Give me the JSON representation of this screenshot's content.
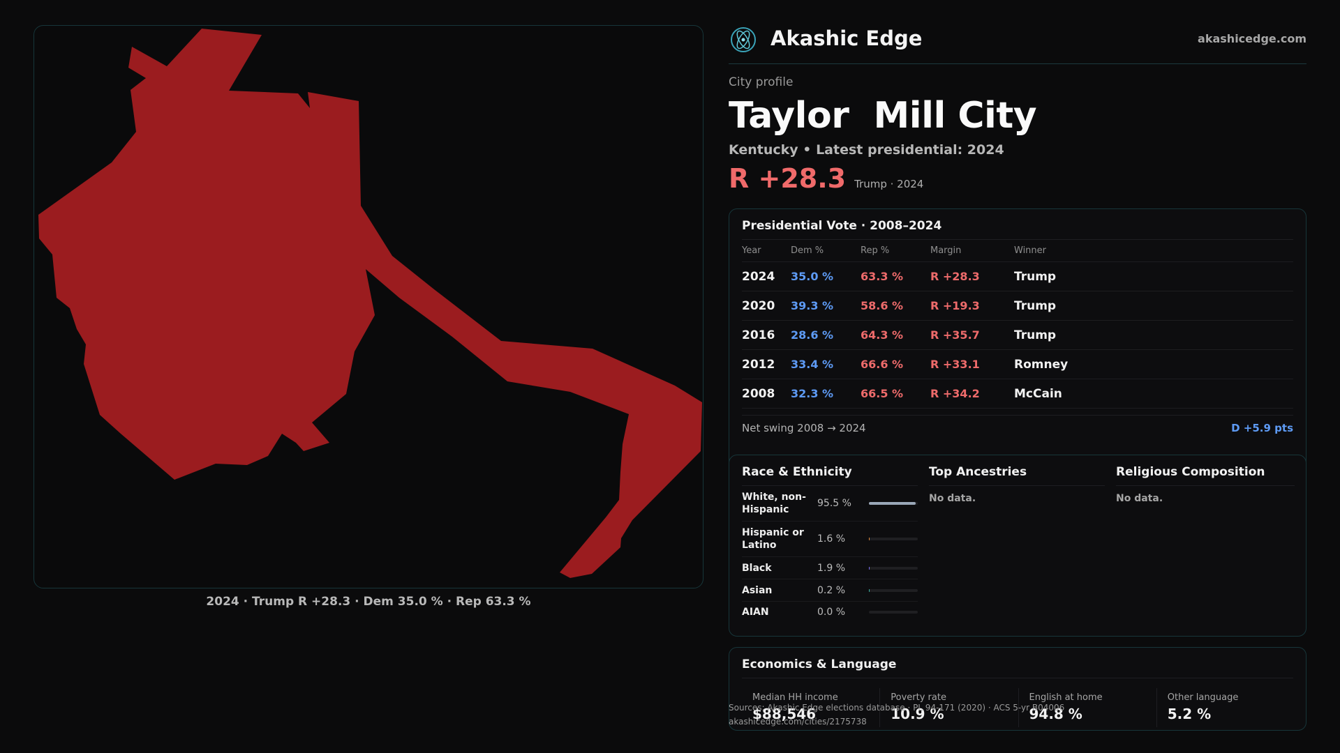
{
  "map": {
    "fill_color": "#9b1c1f",
    "caption": "2024 · Trump R +28.3 · Dem 35.0 % · Rep 63.3 %"
  },
  "header": {
    "brand": "Akashic Edge",
    "site": "akashicedge.com",
    "logo_icon": "atom-logo-icon"
  },
  "profile": {
    "label": "City profile",
    "city": "Taylor  Mill City",
    "subtitle": "Kentucky • Latest presidential: 2024",
    "margin": "R +28.3",
    "margin_note": "Trump · 2024"
  },
  "vote": {
    "title": "Presidential Vote · 2008–2024",
    "columns": [
      "Year",
      "Dem %",
      "Rep %",
      "Margin",
      "Winner"
    ],
    "rows": [
      {
        "year": "2024",
        "dem": "35.0 %",
        "rep": "63.3 %",
        "margin": "R +28.3",
        "winner": "Trump"
      },
      {
        "year": "2020",
        "dem": "39.3 %",
        "rep": "58.6 %",
        "margin": "R +19.3",
        "winner": "Trump"
      },
      {
        "year": "2016",
        "dem": "28.6 %",
        "rep": "64.3 %",
        "margin": "R +35.7",
        "winner": "Trump"
      },
      {
        "year": "2012",
        "dem": "33.4 %",
        "rep": "66.6 %",
        "margin": "R +33.1",
        "winner": "Romney"
      },
      {
        "year": "2008",
        "dem": "32.3 %",
        "rep": "66.5 %",
        "margin": "R +34.2",
        "winner": "McCain"
      }
    ],
    "swing_label": "Net swing 2008 → 2024",
    "swing_value": "D +5.9 pts"
  },
  "demographics": {
    "race_title": "Race & Ethnicity",
    "race": [
      {
        "label": "White, non-Hispanic",
        "pct": "95.5 %",
        "share": 0.955,
        "color": "#9aa7b8"
      },
      {
        "label": "Hispanic or Latino",
        "pct": "1.6 %",
        "share": 0.016,
        "color": "#e0893a"
      },
      {
        "label": "Black",
        "pct": "1.9 %",
        "share": 0.019,
        "color": "#7a6cf0"
      },
      {
        "label": "Asian",
        "pct": "0.2 %",
        "share": 0.002,
        "color": "#3ab0a0"
      },
      {
        "label": "AIAN",
        "pct": "0.0 %",
        "share": 0.0,
        "color": "#c0c0c0"
      }
    ],
    "ancestry_title": "Top Ancestries",
    "ancestry_empty": "No data.",
    "religion_title": "Religious Composition",
    "religion_empty": "No data."
  },
  "economics": {
    "title": "Economics & Language",
    "cells": [
      {
        "label": "Median HH income",
        "value": "$88,546"
      },
      {
        "label": "Poverty rate",
        "value": "10.9 %"
      },
      {
        "label": "English at home",
        "value": "94.8 %"
      },
      {
        "label": "Other language",
        "value": "5.2 %"
      }
    ]
  },
  "source": {
    "line1": "Sources: Akashic Edge elections database · PL 94-171 (2020) · ACS 5-yr B04006",
    "line2": "akashicedge.com/cities/2175738"
  }
}
